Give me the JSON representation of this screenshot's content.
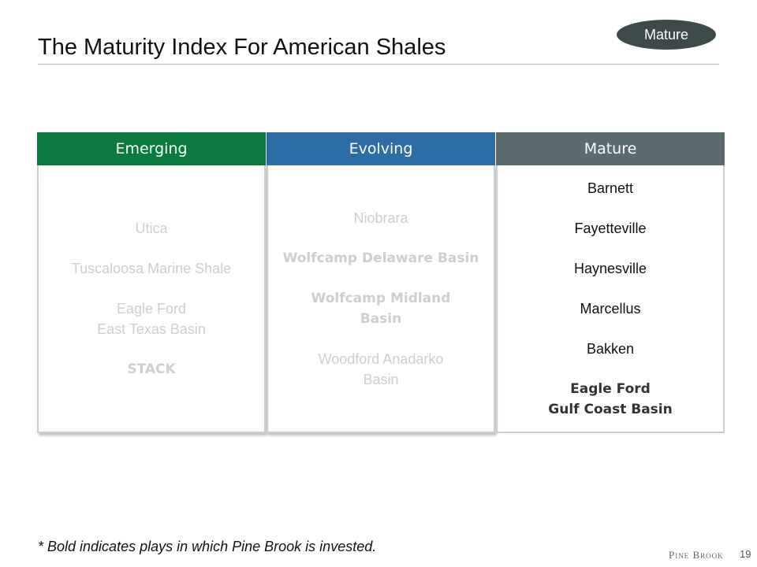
{
  "header": {
    "title": "The Maturity Index For American Shales",
    "badge": "Mature"
  },
  "table": {
    "columns": [
      {
        "name": "Emerging",
        "color": "#0b7a3e",
        "faded": true,
        "items": [
          {
            "lines": [
              "Utica"
            ],
            "bold": false
          },
          {
            "lines": [
              "Tuscaloosa Marine Shale"
            ],
            "bold": false
          },
          {
            "lines": [
              "Eagle Ford",
              "East Texas Basin"
            ],
            "bold": false
          },
          {
            "lines": [
              "STACK"
            ],
            "bold": true
          }
        ]
      },
      {
        "name": "Evolving",
        "color": "#2e6ea6",
        "faded": true,
        "items": [
          {
            "lines": [
              "Niobrara"
            ],
            "bold": false
          },
          {
            "lines": [
              "Wolfcamp Delaware Basin"
            ],
            "bold": true
          },
          {
            "lines": [
              "Wolfcamp Midland",
              "Basin"
            ],
            "bold": true
          },
          {
            "lines": [
              "Woodford Anadarko",
              "Basin"
            ],
            "bold": false
          }
        ]
      },
      {
        "name": "Mature",
        "color": "#5b6b6f",
        "faded": false,
        "items": [
          {
            "lines": [
              "Barnett"
            ],
            "bold": false
          },
          {
            "lines": [
              "Fayetteville"
            ],
            "bold": false
          },
          {
            "lines": [
              "Haynesville"
            ],
            "bold": false
          },
          {
            "lines": [
              "Marcellus"
            ],
            "bold": false
          },
          {
            "lines": [
              "Bakken"
            ],
            "bold": false
          },
          {
            "lines": [
              "Eagle Ford",
              "Gulf Coast Basin"
            ],
            "bold": true
          }
        ]
      }
    ]
  },
  "footer": {
    "note": "* Bold indicates plays in which Pine Brook is invested.",
    "logo": "Pine Brook",
    "page": "19"
  }
}
